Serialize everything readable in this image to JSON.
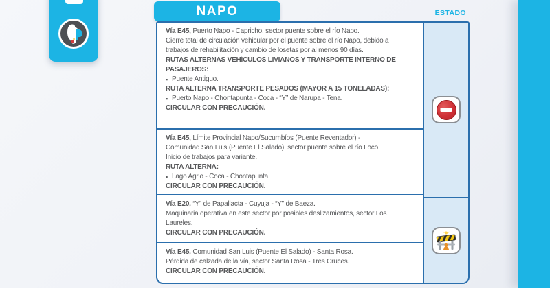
{
  "page": {
    "accent_color": "#1cb4e4",
    "panel_border_color": "#2b6fad",
    "estado_bg_color": "#d9e9f6",
    "text_color": "#57585a"
  },
  "sidebar": {
    "icons": [
      "cropped-white-icon",
      "ecuador-map-logo-icon"
    ]
  },
  "header": {
    "region_tab": "NAPO",
    "estado_label": "ESTADO"
  },
  "sections": [
    {
      "lines": [
        {
          "bold": "Vía E45,",
          "text": " Puerto Napo - Capricho, sector puente sobre el río Napo."
        },
        {
          "text": "Cierre total de circulación vehicular por el puente sobre el río Napo, debido a"
        },
        {
          "text": "trabajos de rehabilitación y cambio de losetas por al menos 90 días."
        },
        {
          "bold": "RUTAS ALTERNAS VEHÍCULOS LIVIANOS Y TRANSPORTE INTERNO DE"
        },
        {
          "bold": "PASAJEROS:"
        },
        {
          "bullet": true,
          "text": "Puente Antiguo."
        },
        {
          "bold": "RUTA ALTERNA TRANSPORTE PESADOS (MAYOR A 15 TONELADAS):"
        },
        {
          "bullet": true,
          "text": "Puerto Napo - Chontapunta - Coca - “Y” de Narupa - Tena."
        },
        {
          "bold": "CIRCULAR CON PRECAUCIÓN."
        }
      ]
    },
    {
      "lines": [
        {
          "bold": "Vía E45,",
          "text": " Límite Provincial Napo/Sucumbíos (Puente Reventador) -"
        },
        {
          "text": "Comunidad San Luis (Puente El Salado), sector puente sobre el río Loco."
        },
        {
          "text": "Inicio de trabajos para variante."
        },
        {
          "bold": "RUTA ALTERNA:"
        },
        {
          "bullet": true,
          "text": "Lago Agrio - Coca - Chontapunta."
        },
        {
          "bold": "CIRCULAR CON PRECAUCIÓN."
        }
      ]
    },
    {
      "lines": [
        {
          "bold": "Vía E20,",
          "text": " “Y” de Papallacta - Cuyuja - “Y” de Baeza."
        },
        {
          "text": "Maquinaria operativa en este sector por posibles deslizamientos, sector Los"
        },
        {
          "text": "Laureles."
        },
        {
          "bold": "CIRCULAR CON PRECAUCIÓN."
        }
      ]
    },
    {
      "lines": [
        {
          "bold": "Vía E45,",
          "text": " Comunidad San Luis (Puente El Salado) - Santa Rosa."
        },
        {
          "text": "Pérdida de calzada de la vía, sector Santa Rosa - Tres Cruces."
        },
        {
          "bold": "CIRCULAR CON PRECAUCIÓN."
        }
      ]
    }
  ],
  "estado": {
    "cells": [
      {
        "icon": "no-entry-icon",
        "color": "#cf3036"
      },
      {
        "icon": "construction-barrier-icon",
        "color": "#f3c613"
      }
    ]
  }
}
